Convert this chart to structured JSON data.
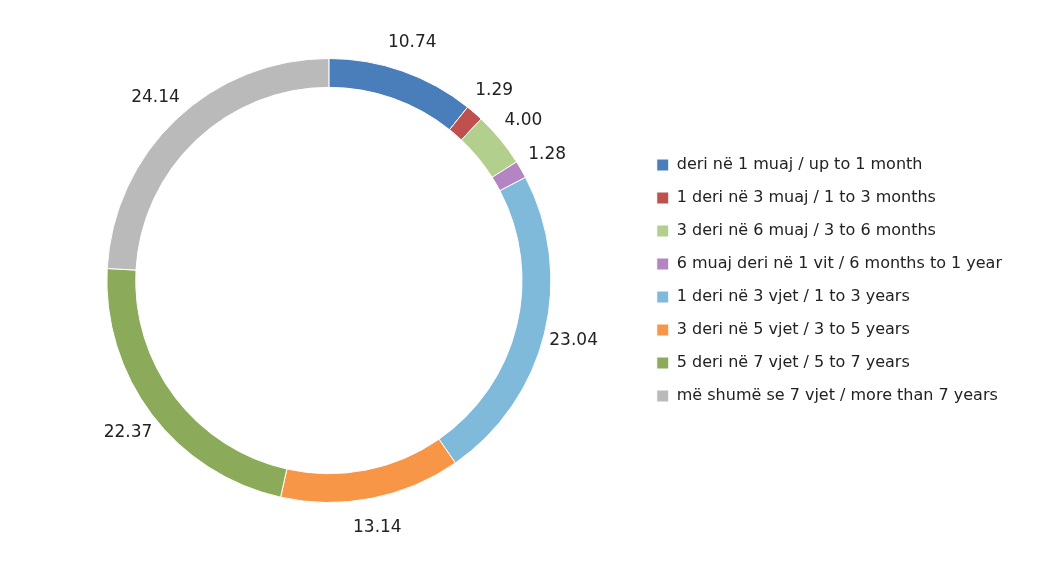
{
  "chart_data": {
    "type": "donut",
    "categories": [
      "deri në 1 muaj / up to 1 month",
      "1 deri në 3 muaj / 1 to 3 months",
      "3 deri në 6 muaj / 3 to 6 months",
      "6 muaj deri në 1 vit / 6 months to 1 year",
      "1 deri në 3 vjet / 1 to 3 years",
      "3 deri në 5 vjet / 3 to 5 years",
      "5 deri në 7 vjet / 5 to 7 years",
      "më shumë se 7 vjet / more than 7 years"
    ],
    "values": [
      10.74,
      1.29,
      4.0,
      1.28,
      23.04,
      13.14,
      22.37,
      24.14
    ],
    "value_labels": [
      "10.74",
      "1.29",
      "4.00",
      "1.28",
      "23.04",
      "13.14",
      "22.37",
      "24.14"
    ],
    "colors": [
      "#4a7ebb",
      "#c0504d",
      "#b3cf8d",
      "#b584c2",
      "#7fbadb",
      "#f79646",
      "#8cab5a",
      "#bababa"
    ],
    "legend": "right"
  }
}
